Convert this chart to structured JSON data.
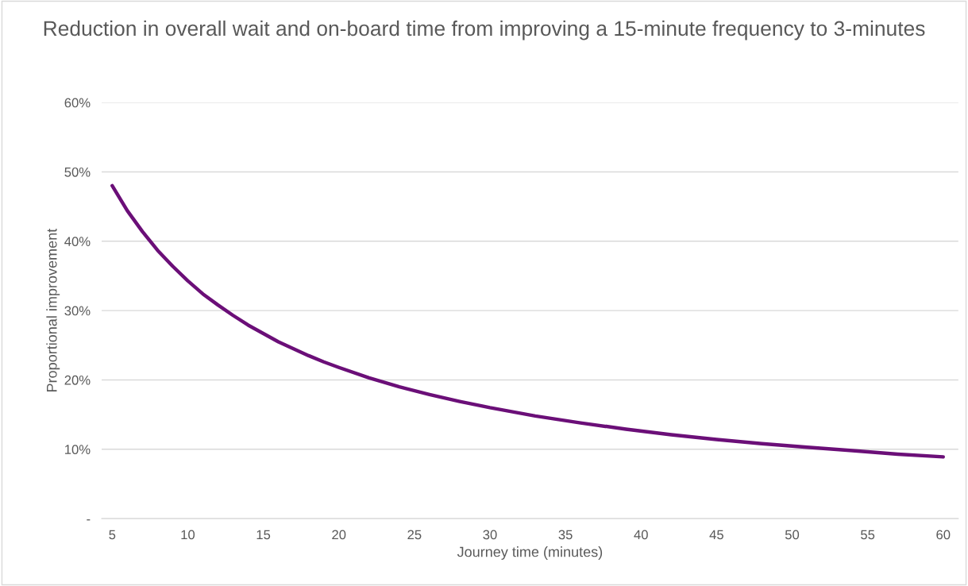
{
  "chart_data": {
    "type": "line",
    "title": "Reduction in overall wait and on-board time from improving a 15-minute frequency to 3-minutes",
    "xlabel": "Journey time (minutes)",
    "ylabel": "Proportional improvement",
    "x": [
      5,
      6,
      7,
      8,
      9,
      10,
      11,
      12,
      13,
      14,
      15,
      16,
      17,
      18,
      19,
      20,
      22,
      24,
      26,
      28,
      30,
      33,
      36,
      39,
      42,
      45,
      48,
      51,
      54,
      57,
      60
    ],
    "series": [
      {
        "color": "#6b0f78",
        "values": [
          48.0,
          44.4,
          41.4,
          38.7,
          36.4,
          34.3,
          32.4,
          30.8,
          29.3,
          27.9,
          26.7,
          25.5,
          24.5,
          23.5,
          22.6,
          21.8,
          20.3,
          19.0,
          17.9,
          16.9,
          16.0,
          14.8,
          13.8,
          12.9,
          12.1,
          11.4,
          10.8,
          10.3,
          9.8,
          9.3,
          8.9
        ]
      }
    ],
    "xlim": [
      4.3,
      61
    ],
    "xticks": [
      5,
      10,
      15,
      20,
      25,
      30,
      35,
      40,
      45,
      50,
      55,
      60
    ],
    "ylim": [
      0,
      60
    ],
    "yticks": [
      {
        "value": 0,
        "label": "-"
      },
      {
        "value": 10,
        "label": "10%"
      },
      {
        "value": 20,
        "label": "20%"
      },
      {
        "value": 30,
        "label": "30%"
      },
      {
        "value": 40,
        "label": "40%"
      },
      {
        "value": 50,
        "label": "50%"
      },
      {
        "value": 60,
        "label": "60%"
      }
    ],
    "grid": "y",
    "legend": false,
    "marker": "none",
    "line_style": "solid"
  }
}
